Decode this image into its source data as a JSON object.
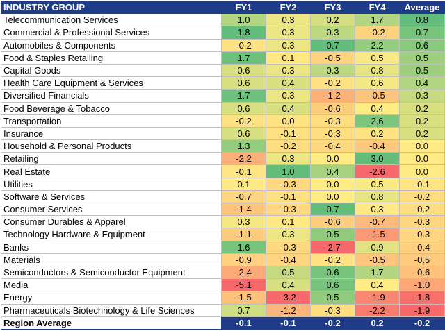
{
  "chart_data": {
    "type": "table",
    "columns": [
      "INDUSTRY GROUP",
      "FY1",
      "FY2",
      "FY3",
      "FY4",
      "Average"
    ],
    "rows": [
      {
        "name": "Telecommunication Services",
        "values": [
          "1.0",
          "0.3",
          "0.2",
          "1.7",
          "0.8"
        ]
      },
      {
        "name": "Commercial & Professional Services",
        "values": [
          "1.8",
          "0.3",
          "0.3",
          "-0.2",
          "0.7"
        ]
      },
      {
        "name": "Automobiles & Components",
        "values": [
          "-0.2",
          "0.3",
          "0.7",
          "2.2",
          "0.6"
        ]
      },
      {
        "name": "Food & Staples Retailing",
        "values": [
          "1.7",
          "0.1",
          "-0.5",
          "0.5",
          "0.5"
        ]
      },
      {
        "name": "Capital Goods",
        "values": [
          "0.6",
          "0.3",
          "0.3",
          "0.8",
          "0.5"
        ]
      },
      {
        "name": "Health Care Equipment & Services",
        "values": [
          "0.6",
          "0.4",
          "-0.2",
          "0.6",
          "0.4"
        ]
      },
      {
        "name": "Diversified Financials",
        "values": [
          "1.7",
          "0.3",
          "-1.2",
          "-0.5",
          "0.3"
        ]
      },
      {
        "name": "Food Beverage & Tobacco",
        "values": [
          "0.6",
          "0.4",
          "-0.6",
          "0.4",
          "0.2"
        ]
      },
      {
        "name": "Transportation",
        "values": [
          "-0.2",
          "0.0",
          "-0.3",
          "2.6",
          "0.2"
        ]
      },
      {
        "name": "Insurance",
        "values": [
          "0.6",
          "-0.1",
          "-0.3",
          "0.2",
          "0.2"
        ]
      },
      {
        "name": "Household & Personal Products",
        "values": [
          "1.3",
          "-0.2",
          "-0.4",
          "-0.4",
          "0.0"
        ]
      },
      {
        "name": "Retailing",
        "values": [
          "-2.2",
          "0.3",
          "0.0",
          "3.0",
          "0.0"
        ]
      },
      {
        "name": "Real Estate",
        "values": [
          "-0.1",
          "1.0",
          "0.4",
          "-2.6",
          "0.0"
        ]
      },
      {
        "name": "Utilities",
        "values": [
          "0.1",
          "-0.3",
          "0.0",
          "0.5",
          "-0.1"
        ]
      },
      {
        "name": "Software & Services",
        "values": [
          "-0.7",
          "-0.1",
          "0.0",
          "0.8",
          "-0.2"
        ]
      },
      {
        "name": "Consumer Services",
        "values": [
          "-1.4",
          "-0.3",
          "0.7",
          "0.3",
          "-0.2"
        ]
      },
      {
        "name": "Consumer Durables & Apparel",
        "values": [
          "0.3",
          "0.1",
          "-0.6",
          "-0.7",
          "-0.3"
        ]
      },
      {
        "name": "Technology Hardware & Equipment",
        "values": [
          "-1.1",
          "0.3",
          "0.5",
          "-1.5",
          "-0.3"
        ]
      },
      {
        "name": "Banks",
        "values": [
          "1.6",
          "-0.3",
          "-2.7",
          "0.9",
          "-0.4"
        ]
      },
      {
        "name": "Materials",
        "values": [
          "-0.9",
          "-0.4",
          "-0.2",
          "-0.5",
          "-0.5"
        ]
      },
      {
        "name": "Semiconductors & Semiconductor Equipment",
        "values": [
          "-2.4",
          "0.5",
          "0.6",
          "1.7",
          "-0.6"
        ]
      },
      {
        "name": "Media",
        "values": [
          "-5.1",
          "0.4",
          "0.6",
          "0.4",
          "-1.0"
        ]
      },
      {
        "name": "Energy",
        "values": [
          "-1.5",
          "-3.2",
          "0.5",
          "-1.9",
          "-1.8"
        ]
      },
      {
        "name": "Pharmaceuticals Biotechnology & Life Sciences",
        "values": [
          "0.7",
          "-1.2",
          "-0.3",
          "-2.2",
          "-1.9"
        ]
      }
    ],
    "footer": {
      "name": "Region Average",
      "values": [
        "-0.1",
        "-0.1",
        "-0.2",
        "0.2",
        "-0.2"
      ]
    },
    "color_scale": {
      "low": "#f8696b",
      "mid": "#ffeb84",
      "high": "#63be7b"
    },
    "header_color": "#1f3c88"
  }
}
